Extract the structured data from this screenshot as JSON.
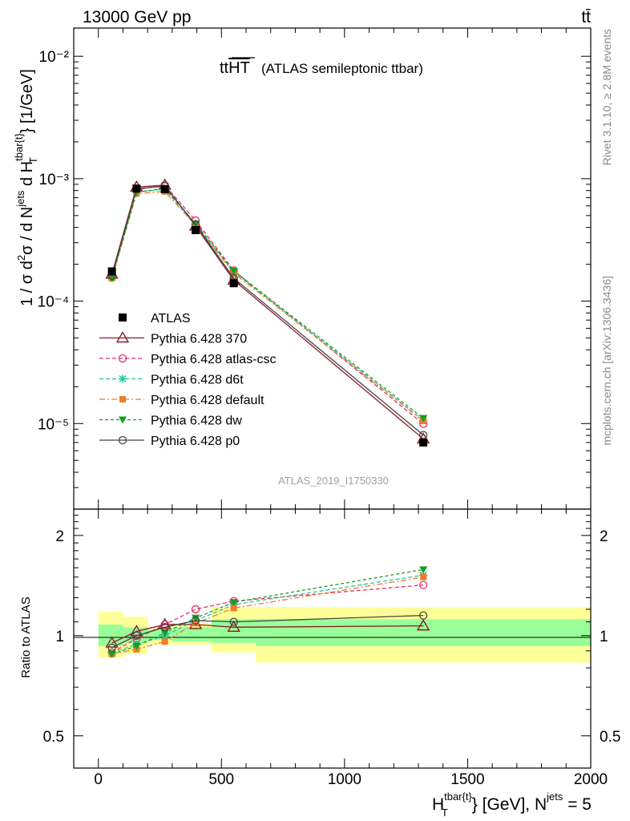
{
  "header": {
    "left": "13000 GeV pp",
    "right": "tt̄"
  },
  "side_labels": {
    "rivet": "Rivet 3.1.10, ≥ 2.8M events",
    "mcplots": "mcplots.cern.ch [arXiv:1306.3436]"
  },
  "chart_data": {
    "type": "line",
    "title_main": "ttHT",
    "title_sub": "(ATLAS semileptonic ttbar)",
    "analysis_label": "ATLAS_2019_I1750330",
    "ylabel_main": "1 / σ d²σ / d N^jets d H_T^tbar{t} [1/GeV]",
    "ylabel_ratio": "Ratio to ATLAS",
    "xlabel": "H_T^tbar{t} [GeV], N^jets = 5",
    "xlim": [
      -100,
      2000
    ],
    "ylim_main": [
      2e-06,
      0.017
    ],
    "ylog_main": true,
    "ylim_ratio": [
      0.4,
      2.4
    ],
    "ylog_ratio": true,
    "xticks": [
      0,
      500,
      1000,
      1500,
      2000
    ],
    "yticks_main": [
      {
        "v": 0.01,
        "label": "10⁻²"
      },
      {
        "v": 0.001,
        "label": "10⁻³"
      },
      {
        "v": 0.0001,
        "label": "10⁻⁴"
      },
      {
        "v": 1e-05,
        "label": "10⁻⁵"
      }
    ],
    "yticks_ratio": [
      {
        "v": 0.5,
        "label": "0.5"
      },
      {
        "v": 1,
        "label": "1"
      },
      {
        "v": 2,
        "label": "2"
      }
    ],
    "bins": [
      [
        0,
        100
      ],
      [
        100,
        200
      ],
      [
        200,
        300
      ],
      [
        300,
        460
      ],
      [
        460,
        640
      ],
      [
        640,
        2000
      ]
    ],
    "x": [
      55,
      155,
      270,
      395,
      550,
      1320
    ],
    "reference": {
      "name": "ATLAS",
      "values": [
        0.000175,
        0.00083,
        0.00082,
        0.00038,
        0.00014,
        7e-06
      ],
      "band_stat": [
        [
          0.93,
          1.08
        ],
        [
          0.95,
          1.06
        ],
        [
          0.97,
          1.04
        ],
        [
          0.96,
          1.06
        ],
        [
          0.95,
          1.12
        ],
        [
          0.93,
          1.12
        ]
      ],
      "band_total": [
        [
          0.86,
          1.18
        ],
        [
          0.88,
          1.14
        ],
        [
          0.94,
          1.06
        ],
        [
          0.94,
          1.09
        ],
        [
          0.89,
          1.22
        ],
        [
          0.83,
          1.22
        ]
      ]
    },
    "series": [
      {
        "name": "Pythia 6.428 370",
        "color": "#8b1a2b",
        "dash": "",
        "marker": "triangle-open",
        "ratio": [
          0.95,
          1.03,
          1.08,
          1.08,
          1.06,
          1.07
        ]
      },
      {
        "name": "Pythia 6.428 atlas-csc",
        "color": "#e8306a",
        "dash": "5,3",
        "marker": "circle-open",
        "ratio": [
          0.89,
          0.98,
          1.08,
          1.2,
          1.27,
          1.42
        ]
      },
      {
        "name": "Pythia 6.428 d6t",
        "color": "#26c2a4",
        "dash": "5,3",
        "marker": "star",
        "ratio": [
          0.89,
          0.94,
          1.0,
          1.11,
          1.24,
          1.52
        ]
      },
      {
        "name": "Pythia 6.428 default",
        "color": "#f07c24",
        "dash": "7,3,2,3",
        "marker": "square",
        "ratio": [
          0.88,
          0.91,
          0.96,
          1.09,
          1.21,
          1.5
        ]
      },
      {
        "name": "Pythia 6.428 dw",
        "color": "#16a020",
        "dash": "4,3",
        "marker": "triangle-down",
        "ratio": [
          0.88,
          0.93,
          1.02,
          1.13,
          1.26,
          1.58
        ]
      },
      {
        "name": "Pythia 6.428 p0",
        "color": "#444444",
        "dash": "",
        "marker": "circle-open",
        "ratio": [
          0.92,
          1.0,
          1.06,
          1.11,
          1.1,
          1.15
        ]
      }
    ],
    "legend_placement": "middle-left",
    "colors": {
      "band_total": "#ffff99",
      "band_stat": "#99ff99"
    }
  }
}
